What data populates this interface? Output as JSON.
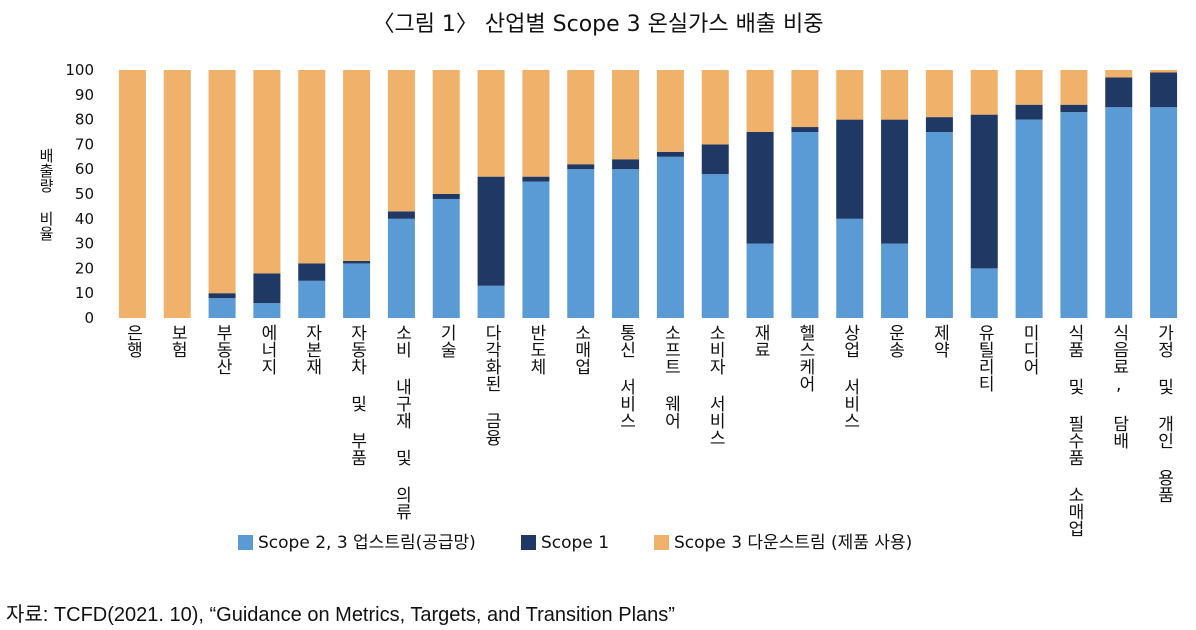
{
  "title": "〈그림 1〉 산업별 Scope 3 온실가스 배출 비중",
  "source": "자료: TCFD(2021. 10), “Guidance on Metrics, Targets, and Transition Plans”",
  "chart_data": {
    "type": "bar",
    "stacked": true,
    "ylabel": "배출량 비율",
    "xlabel": "",
    "ylim": [
      0,
      100
    ],
    "yticks": [
      0,
      10,
      20,
      30,
      40,
      50,
      60,
      70,
      80,
      90,
      100
    ],
    "grid": false,
    "legend_position": "bottom",
    "categories": [
      "은행",
      "보험",
      "부동산",
      "에너지",
      "자본재",
      "자동차 및 부품",
      "소비 내구재 및 의류",
      "기술",
      "다각화된 금융",
      "반도체",
      "소매업",
      "통신 서비스",
      "소프트 웨어",
      "소비자 서비스",
      "재료",
      "헬스케어",
      "상업 서비스",
      "운송",
      "제약",
      "유틸리티",
      "미디어",
      "식품 및 필수품 소매업",
      "식음료, 담배",
      "가정 및 개인 용품"
    ],
    "series": [
      {
        "name": "Scope 2, 3 업스트림(공급망)",
        "color": "#5b9bd5",
        "values": [
          0,
          0,
          8,
          6,
          15,
          22,
          40,
          48,
          13,
          55,
          60,
          60,
          65,
          58,
          30,
          75,
          40,
          30,
          75,
          20,
          80,
          83,
          85,
          85
        ]
      },
      {
        "name": "Scope 1",
        "color": "#1f3864",
        "values": [
          0,
          0,
          2,
          12,
          7,
          1,
          3,
          2,
          44,
          2,
          2,
          4,
          2,
          12,
          45,
          2,
          40,
          50,
          6,
          62,
          6,
          3,
          12,
          14
        ]
      },
      {
        "name": "Scope 3 다운스트림 (제품 사용)",
        "color": "#f0b16b",
        "values": [
          100,
          100,
          90,
          82,
          78,
          77,
          57,
          50,
          43,
          43,
          38,
          36,
          33,
          30,
          25,
          23,
          20,
          20,
          19,
          18,
          14,
          14,
          3,
          1
        ]
      }
    ]
  }
}
